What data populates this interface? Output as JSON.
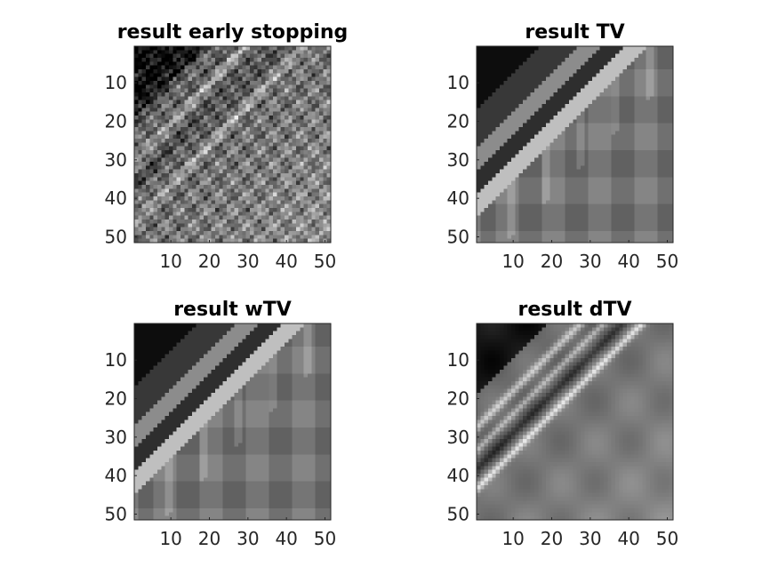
{
  "chart_data": [
    {
      "type": "heatmap",
      "title": "result early stopping",
      "colormap": "gray",
      "size": [
        51,
        51
      ],
      "xlim": [
        0.5,
        51.5
      ],
      "ylim": [
        0.5,
        51.5
      ],
      "y_direction": "reverse",
      "xticks": [
        10,
        20,
        30,
        40,
        50
      ],
      "yticks": [
        10,
        20,
        30,
        40,
        50
      ],
      "style": "textured"
    },
    {
      "type": "heatmap",
      "title": "result TV",
      "colormap": "gray",
      "size": [
        51,
        51
      ],
      "xlim": [
        0.5,
        51.5
      ],
      "ylim": [
        0.5,
        51.5
      ],
      "y_direction": "reverse",
      "xticks": [
        10,
        20,
        30,
        40,
        50
      ],
      "yticks": [
        10,
        20,
        30,
        40,
        50
      ],
      "style": "piecewise-flat"
    },
    {
      "type": "heatmap",
      "title": "result wTV",
      "colormap": "gray",
      "size": [
        51,
        51
      ],
      "xlim": [
        0.5,
        51.5
      ],
      "ylim": [
        0.5,
        51.5
      ],
      "y_direction": "reverse",
      "xticks": [
        10,
        20,
        30,
        40,
        50
      ],
      "yticks": [
        10,
        20,
        30,
        40,
        50
      ],
      "style": "piecewise-flat"
    },
    {
      "type": "heatmap",
      "title": "result dTV",
      "colormap": "gray",
      "size": [
        51,
        51
      ],
      "xlim": [
        0.5,
        51.5
      ],
      "ylim": [
        0.5,
        51.5
      ],
      "y_direction": "reverse",
      "xticks": [
        10,
        20,
        30,
        40,
        50
      ],
      "yticks": [
        10,
        20,
        30,
        40,
        50
      ],
      "style": "smooth"
    }
  ]
}
